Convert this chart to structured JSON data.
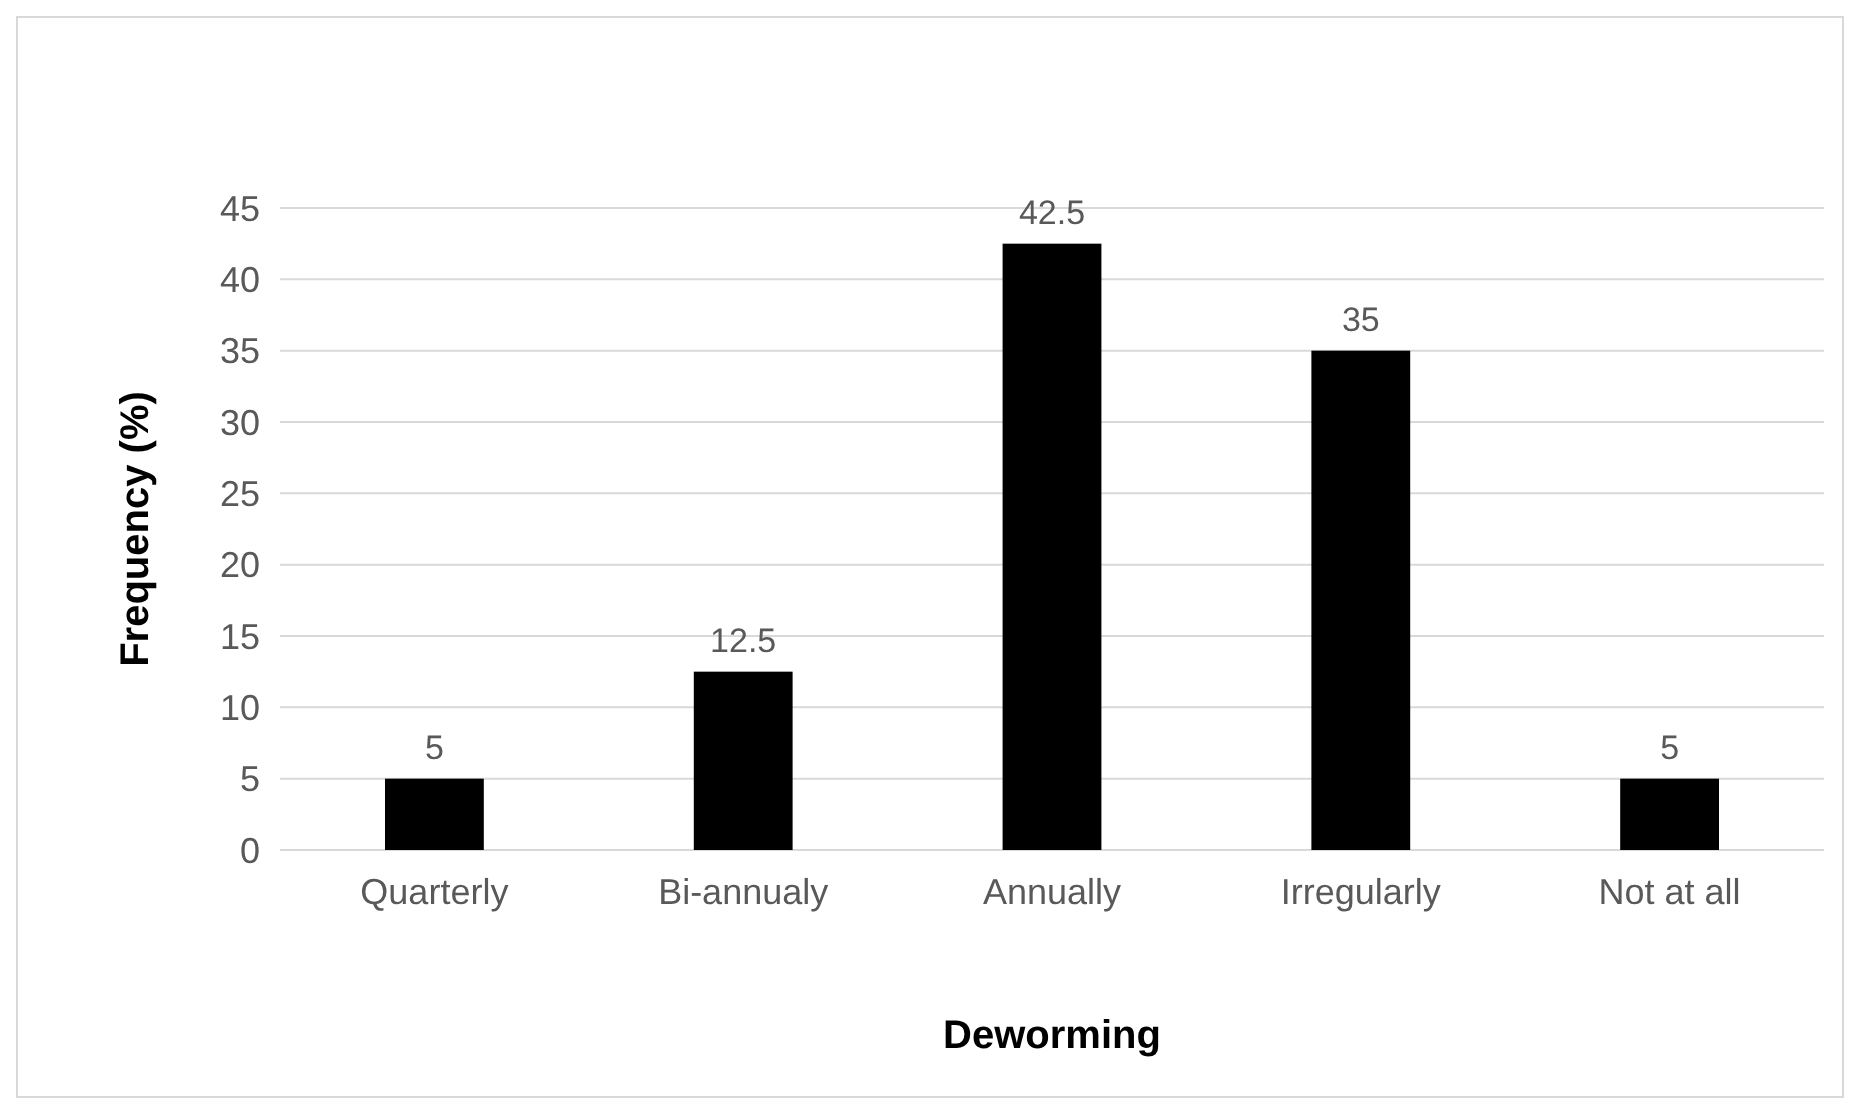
{
  "chart_data": {
    "type": "bar",
    "xlabel": "Deworming",
    "ylabel": "Frequency (%)",
    "categories": [
      "Quarterly",
      "Bi-annualy",
      "Annually",
      "Irregularly",
      "Not at all"
    ],
    "values": [
      5,
      12.5,
      42.5,
      35,
      5
    ],
    "color": "#000000",
    "ylim": [
      0,
      45
    ],
    "yticks": [
      0,
      5,
      10,
      15,
      20,
      25,
      30,
      35,
      40,
      45
    ],
    "grid": "y",
    "data_labels": true
  }
}
